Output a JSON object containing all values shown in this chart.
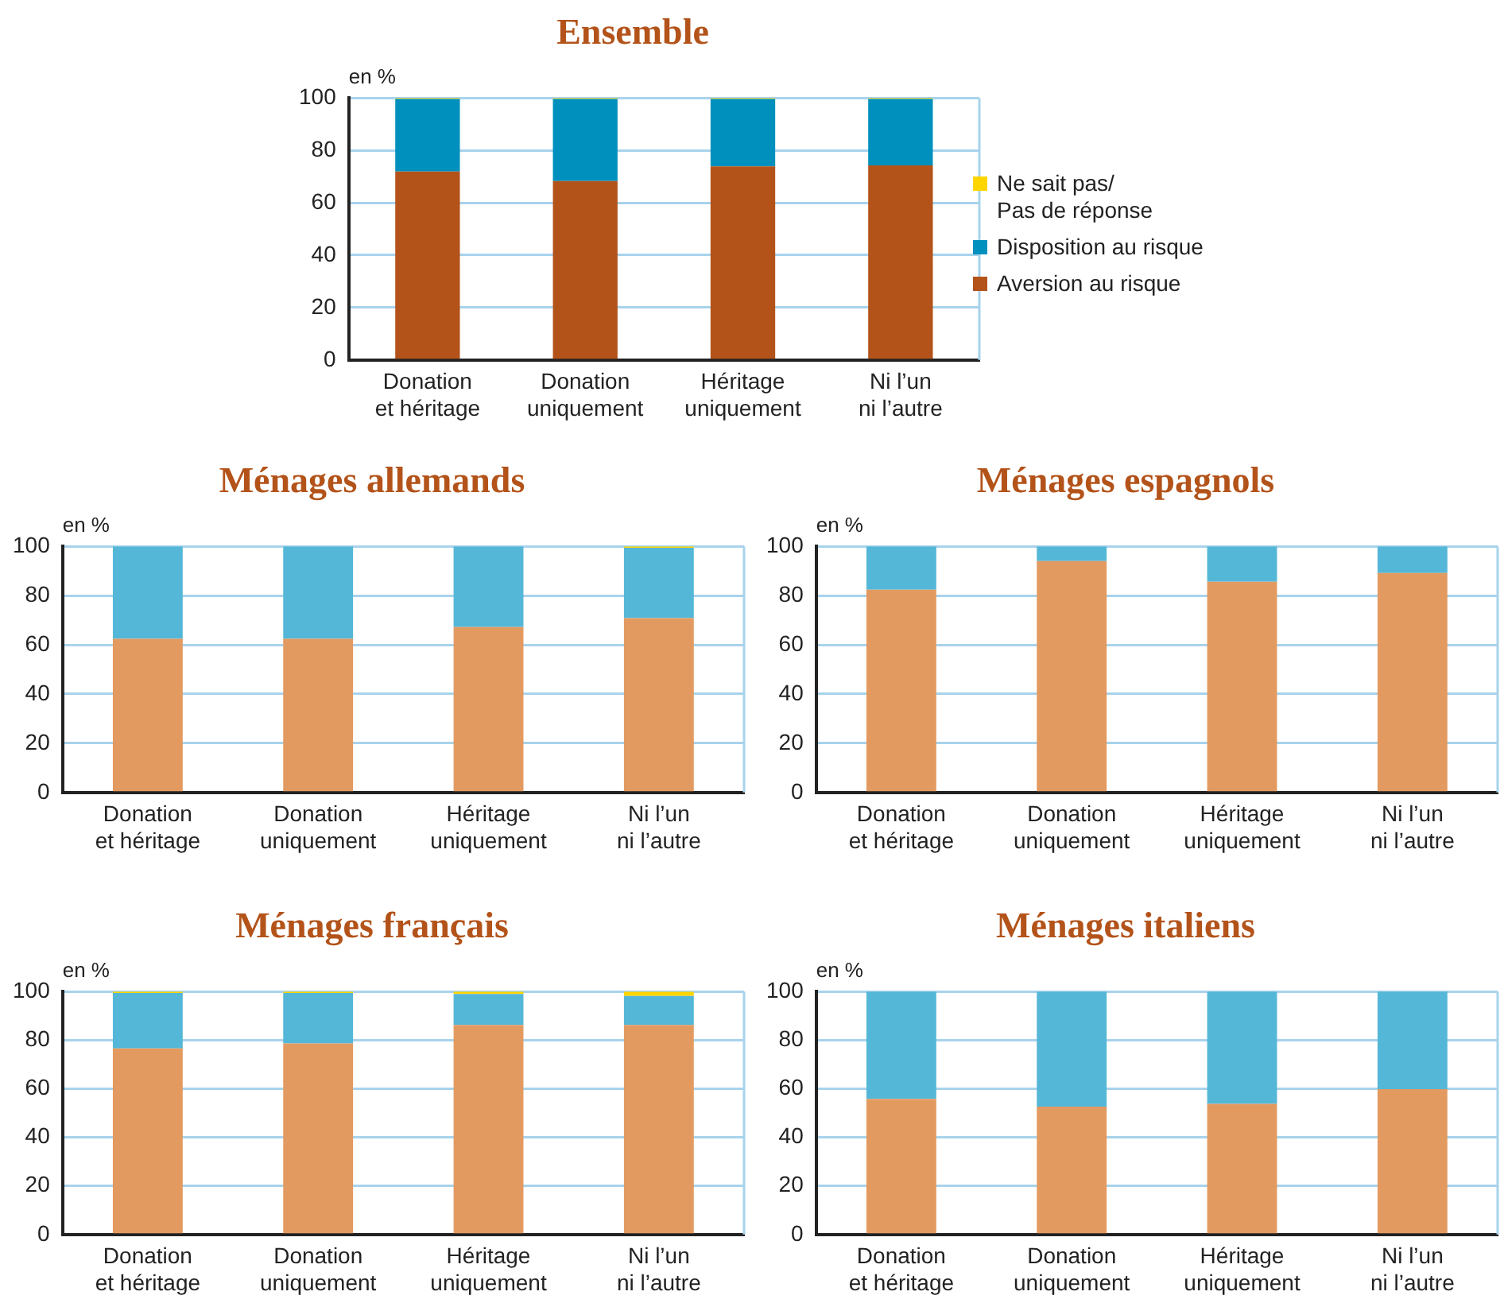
{
  "chart_data": [
    {
      "type": "bar",
      "title": "Ensemble",
      "ylabel": "en %",
      "stacked": true,
      "categories": [
        "Donation\net héritage",
        "Donation\nuniquement",
        "Héritage\nuniquement",
        "Ni l’un\nni l’autre"
      ],
      "series": [
        {
          "name": "Aversion au risque",
          "color": "#b3531a",
          "values": [
            71.9,
            68.3,
            73.9,
            74.3
          ]
        },
        {
          "name": "Disposition au risque",
          "color": "#0090bd",
          "values": [
            27.7,
            31.3,
            25.7,
            25.3
          ]
        },
        {
          "name": "Ne sait pas/\nPas de réponse",
          "color": "#ffd500",
          "values": [
            0.4,
            0.4,
            0.4,
            0.4
          ]
        }
      ],
      "ylim": [
        0,
        100
      ],
      "yticks": [
        0,
        20,
        40,
        60,
        80,
        100
      ],
      "grid": "y",
      "legend": "right"
    },
    {
      "type": "bar",
      "title": "Ménages allemands",
      "ylabel": "en %",
      "stacked": true,
      "categories": [
        "Donation\net héritage",
        "Donation\nuniquement",
        "Héritage\nuniquement",
        "Ni l’un\nni l’autre"
      ],
      "series": [
        {
          "color": "#e39a60",
          "values": [
            62.4,
            62.4,
            67.2,
            70.8
          ]
        },
        {
          "color": "#54b7d7",
          "values": [
            37.6,
            37.6,
            32.8,
            28.6
          ]
        },
        {
          "color": "#ffd500",
          "values": [
            0,
            0,
            0,
            0.6
          ]
        }
      ],
      "ylim": [
        0,
        100
      ],
      "yticks": [
        0,
        20,
        40,
        60,
        80,
        100
      ],
      "grid": "y"
    },
    {
      "type": "bar",
      "title": "Ménages espagnols",
      "ylabel": "en %",
      "stacked": true,
      "categories": [
        "Donation\net héritage",
        "Donation\nuniquement",
        "Héritage\nuniquement",
        "Ni l’un\nni l’autre"
      ],
      "series": [
        {
          "color": "#e39a60",
          "values": [
            82.4,
            94,
            85.6,
            89.2
          ]
        },
        {
          "color": "#54b7d7",
          "values": [
            17.6,
            6,
            14.4,
            10.8
          ]
        }
      ],
      "ylim": [
        0,
        100
      ],
      "yticks": [
        0,
        20,
        40,
        60,
        80,
        100
      ],
      "grid": "y"
    },
    {
      "type": "bar",
      "title": "Ménages français",
      "ylabel": "en %",
      "stacked": true,
      "categories": [
        "Donation\net héritage",
        "Donation\nuniquement",
        "Héritage\nuniquement",
        "Ni l’un\nni l’autre"
      ],
      "series": [
        {
          "color": "#e39a60",
          "values": [
            76.6,
            78.6,
            86.2,
            86.2
          ]
        },
        {
          "color": "#54b7d7",
          "values": [
            22.8,
            20.8,
            12.8,
            12
          ]
        },
        {
          "color": "#ffd500",
          "values": [
            0.6,
            0.6,
            1,
            1.8
          ]
        }
      ],
      "ylim": [
        0,
        100
      ],
      "yticks": [
        0,
        20,
        40,
        60,
        80,
        100
      ],
      "grid": "y"
    },
    {
      "type": "bar",
      "title": "Ménages italiens",
      "ylabel": "en %",
      "stacked": true,
      "categories": [
        "Donation\net héritage",
        "Donation\nuniquement",
        "Héritage\nuniquement",
        "Ni l’un\nni l’autre"
      ],
      "series": [
        {
          "color": "#e39a60",
          "values": [
            55.8,
            52.6,
            53.8,
            59.8
          ]
        },
        {
          "color": "#54b7d7",
          "values": [
            44.2,
            47.4,
            46.2,
            40.2
          ]
        }
      ],
      "ylim": [
        0,
        100
      ],
      "yticks": [
        0,
        20,
        40,
        60,
        80,
        100
      ],
      "grid": "y"
    }
  ]
}
